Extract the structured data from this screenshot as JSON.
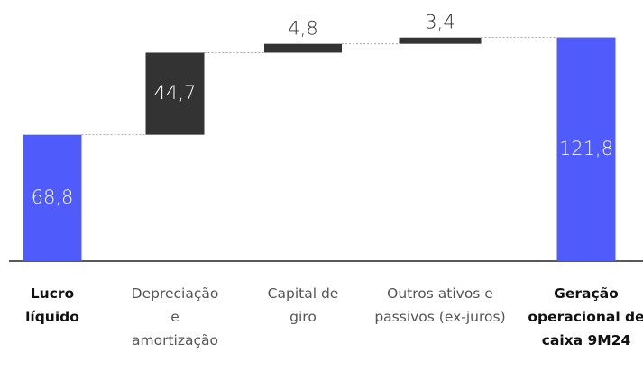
{
  "chart_data": {
    "type": "waterfall",
    "categories": [
      "Lucro líquido",
      "Depreciação e amortização",
      "Capital de giro",
      "Outros ativos e passivos (ex-juros)",
      "Geração operacional de caixa 9M24"
    ],
    "values": [
      68.8,
      44.7,
      4.8,
      3.4,
      121.8
    ],
    "value_labels": [
      "68,8",
      "44,7",
      "4,8",
      "3,4",
      "121,8"
    ],
    "measure": [
      "absolute",
      "relative",
      "relative",
      "relative",
      "total"
    ],
    "total_color": "#4f5bfa",
    "relative_color": "#333333",
    "ylim": [
      0,
      125
    ]
  }
}
